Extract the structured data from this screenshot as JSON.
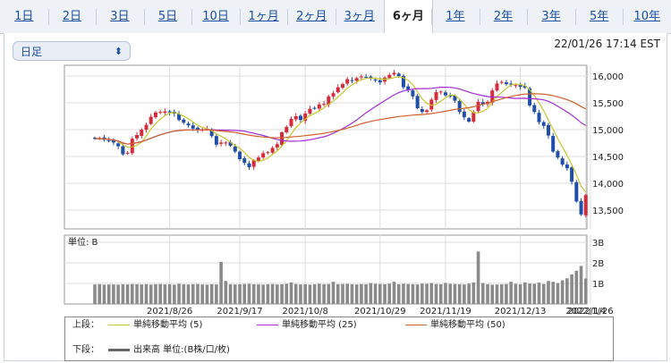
{
  "tabs": [
    "1日",
    "2日",
    "3日",
    "5日",
    "10日",
    "1ヶ月",
    "2ヶ月",
    "3ヶ月",
    "6ヶ月",
    "1年",
    "2年",
    "3年",
    "5年",
    "10年"
  ],
  "active_tab": "6ヶ月",
  "period_select": {
    "value": "日足"
  },
  "timestamp": "22/01/26 17:14 EST",
  "legend": {
    "upper_label": "上段：",
    "lower_label": "下段：",
    "ma5": "単純移動平均 (5)",
    "ma25": "単純移動平均 (25)",
    "ma50": "単純移動平均 (50)",
    "volume": "出来高 単位:(B株/口/枚)"
  },
  "colors": {
    "up": "#d62b3a",
    "down": "#1f4fa8",
    "ma5": "#c7c62a",
    "ma25": "#a22bd6",
    "ma50": "#d0602b",
    "volume": "#8a8a8a"
  },
  "chart_data": [
    {
      "type": "candlestick",
      "x_tick_labels": [
        "2021/8/26",
        "2021/9/17",
        "2021/10/8",
        "2021/10/29",
        "2021/11/19",
        "2021/12/13",
        "2022/1/4",
        "2022/1/26"
      ],
      "y_tick_labels": [
        "13,500",
        "14,000",
        "14,500",
        "15,000",
        "15,500",
        "16,000"
      ],
      "ylim": [
        13150,
        16200
      ],
      "grid": true,
      "series": [
        {
          "name": "単純移動平均 (5)"
        },
        {
          "name": "単純移動平均 (25)"
        },
        {
          "name": "単純移動平均 (50)"
        }
      ],
      "close": [
        14830,
        14840,
        14810,
        14800,
        14760,
        14690,
        14540,
        14570,
        14830,
        14900,
        15000,
        15090,
        15240,
        15320,
        15330,
        15340,
        15320,
        15300,
        15180,
        15130,
        15080,
        15020,
        14990,
        15000,
        15020,
        14880,
        14720,
        14760,
        14760,
        14700,
        14590,
        14450,
        14380,
        14300,
        14430,
        14480,
        14560,
        14580,
        14660,
        14730,
        14950,
        15050,
        15200,
        15250,
        15180,
        15300,
        15390,
        15400,
        15470,
        15480,
        15620,
        15680,
        15790,
        15850,
        15940,
        15910,
        15960,
        15990,
        15980,
        15950,
        15920,
        15880,
        15970,
        16020,
        16060,
        16000,
        15790,
        15740,
        15620,
        15400,
        15330,
        15360,
        15560,
        15700,
        15710,
        15640,
        15620,
        15540,
        15330,
        15230,
        15150,
        15330,
        15520,
        15470,
        15520,
        15730,
        15860,
        15890,
        15850,
        15840,
        15830,
        15800,
        15780,
        15450,
        15330,
        15140,
        15070,
        14890,
        14590,
        14480,
        14350,
        14280,
        14030,
        13660,
        13420,
        13780
      ]
    },
    {
      "type": "bar",
      "name": "出来高",
      "y_tick_labels": [
        "1B",
        "2B",
        "3B"
      ],
      "ylim": [
        0,
        3
      ],
      "values": [
        0.95,
        0.96,
        0.94,
        0.95,
        0.95,
        0.94,
        0.96,
        0.95,
        0.97,
        0.96,
        0.95,
        0.96,
        0.94,
        0.96,
        0.97,
        0.95,
        0.96,
        0.94,
        0.98,
        0.96,
        0.95,
        0.96,
        0.97,
        0.95,
        0.94,
        0.96,
        0.95,
        2.05,
        1.12,
        0.96,
        0.95,
        0.96,
        0.97,
        0.98,
        0.96,
        0.95,
        0.94,
        0.96,
        0.97,
        0.95,
        0.96,
        0.98,
        1.05,
        0.97,
        0.95,
        0.96,
        0.94,
        0.96,
        0.98,
        0.96,
        0.97,
        1.08,
        0.96,
        0.97,
        0.98,
        0.96,
        0.95,
        0.97,
        0.96,
        1.02,
        0.98,
        0.97,
        0.96,
        0.99,
        1.08,
        0.96,
        0.98,
        0.97,
        0.96,
        0.95,
        0.99,
        0.98,
        1.02,
        0.97,
        0.96,
        1.02,
        0.98,
        0.97,
        0.96,
        0.95,
        0.99,
        1.05,
        2.55,
        1.02,
        0.96,
        0.94,
        0.95,
        0.96,
        0.97,
        1.08,
        0.98,
        0.96,
        1.05,
        0.99,
        0.98,
        1.04,
        0.97,
        1.12,
        1.08,
        1.02,
        1.15,
        1.25,
        1.44,
        1.62,
        1.85,
        1.24
      ]
    }
  ]
}
